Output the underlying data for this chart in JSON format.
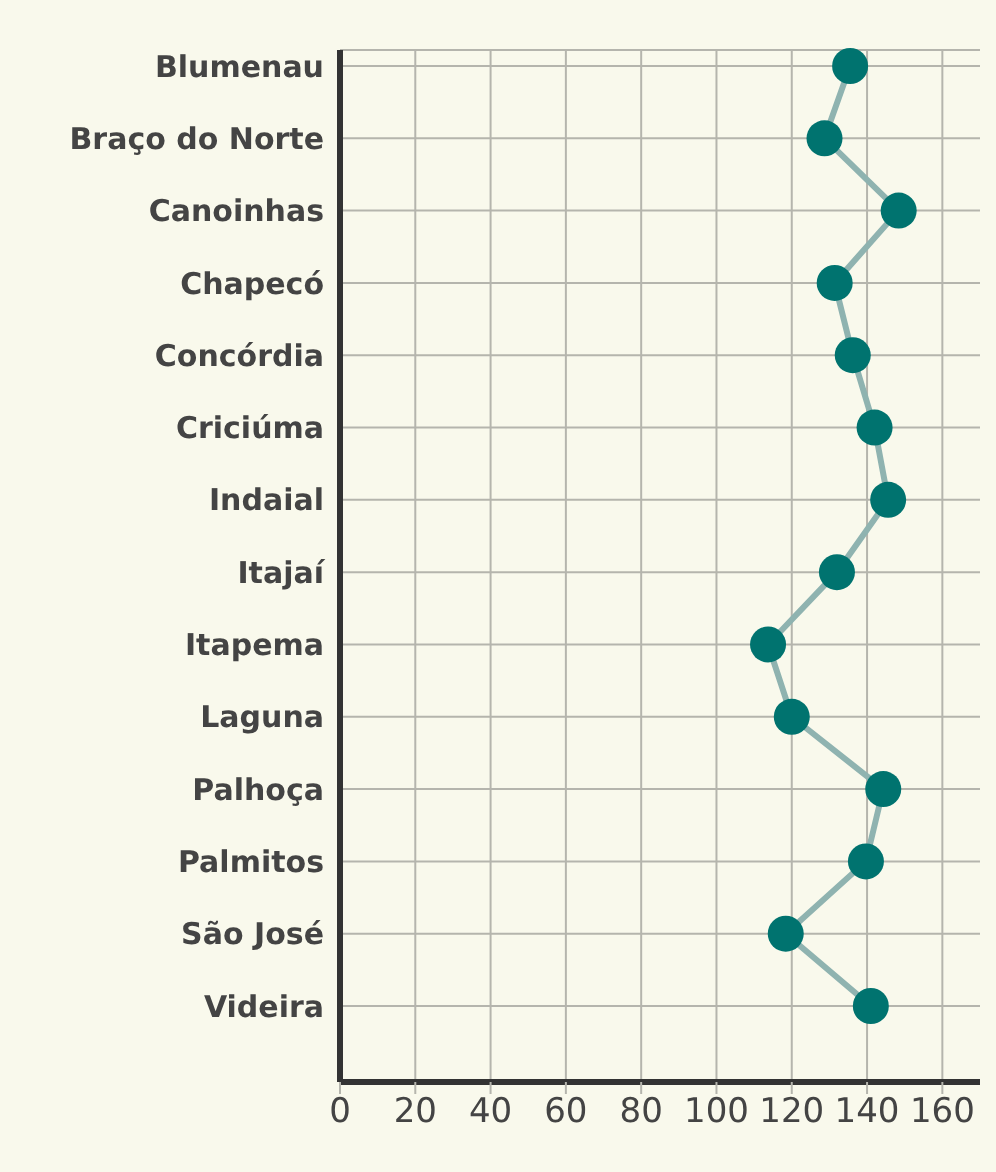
{
  "chart_data": {
    "type": "line",
    "categories": [
      "Blumenau",
      "Braço do Norte",
      "Canoinhas",
      "Chapecó",
      "Concórdia",
      "Criciúma",
      "Indaial",
      "Itajaí",
      "Itapema",
      "Laguna",
      "Palhoça",
      "Palmitos",
      "São José",
      "Videira"
    ],
    "series": [
      {
        "color": "#00736f",
        "values": [
          135.5,
          128.7,
          148.4,
          131.4,
          136.2,
          142,
          145.6,
          132,
          113.7,
          120,
          144.3,
          139.7,
          118.4,
          141
        ]
      }
    ],
    "orientation": "horizontal",
    "xlim": [
      0,
      170
    ],
    "xticks": [
      0,
      20,
      40,
      60,
      80,
      100,
      120,
      140,
      160
    ],
    "grid": true,
    "marker": "circle",
    "line_style": "solid"
  }
}
